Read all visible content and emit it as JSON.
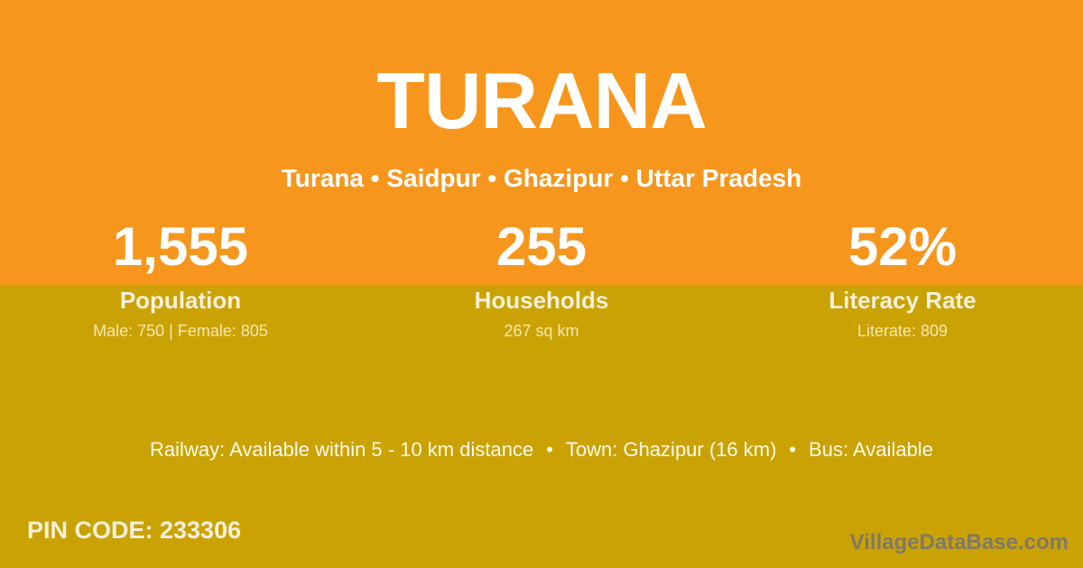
{
  "colors": {
    "orange": "#F7961D",
    "gold": "#CBA203"
  },
  "header": {
    "title": "TURANA",
    "breadcrumb": "Turana • Saidpur • Ghazipur • Uttar Pradesh"
  },
  "stats": [
    {
      "value": "1,555",
      "label": "Population",
      "detail": "Male: 750 | Female: 805"
    },
    {
      "value": "255",
      "label": "Households",
      "detail": "267 sq km"
    },
    {
      "value": "52%",
      "label": "Literacy Rate",
      "detail": "Literate: 809"
    }
  ],
  "info_bar": {
    "bullet": "•",
    "railway": "Railway: Available within 5 - 10 km distance",
    "town": "Town: Ghazipur (16 km)",
    "bus": "Bus: Available"
  },
  "footer": {
    "pin_code": "PIN CODE: 233306",
    "brand": "VillageDataBase.com"
  }
}
